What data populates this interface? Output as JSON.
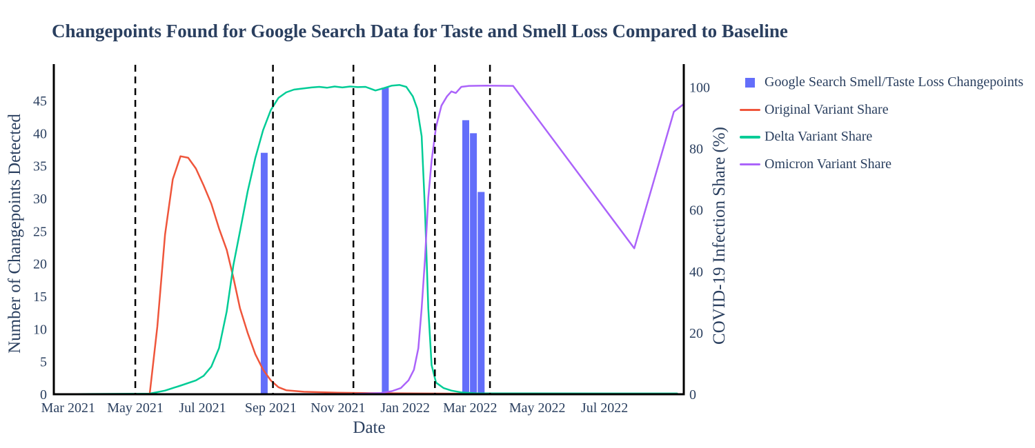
{
  "title": "Changepoints Found for Google Search Data for Taste and Smell Loss Compared to Baseline",
  "axes": {
    "x": {
      "title": "Date",
      "ticks": [
        {
          "label": "Mar 2021",
          "date": "2021-03-01"
        },
        {
          "label": "May 2021",
          "date": "2021-05-01"
        },
        {
          "label": "Jul 2021",
          "date": "2021-07-01"
        },
        {
          "label": "Sep 2021",
          "date": "2021-09-01"
        },
        {
          "label": "Nov 2021",
          "date": "2021-11-01"
        },
        {
          "label": "Jan 2022",
          "date": "2022-01-01"
        },
        {
          "label": "Mar 2022",
          "date": "2022-03-01"
        },
        {
          "label": "May 2022",
          "date": "2022-05-01"
        },
        {
          "label": "Jul 2022",
          "date": "2022-07-01"
        }
      ]
    },
    "y_left": {
      "title": "Number of Changepoints Detected",
      "ticks": [
        0,
        5,
        10,
        15,
        20,
        25,
        30,
        35,
        40,
        45
      ],
      "range": [
        0,
        50.6
      ]
    },
    "y_right": {
      "title": "COVID-19 Infection Share (%)",
      "ticks": [
        0,
        20,
        40,
        60,
        80,
        100
      ],
      "range": [
        0,
        107.5
      ]
    }
  },
  "legend": {
    "items": [
      {
        "label": "Google Search Smell/Taste Loss Changepoints",
        "marker": "square",
        "color": "#636EFA"
      },
      {
        "label": "Original Variant Share",
        "marker": "line",
        "color": "#EF553B"
      },
      {
        "label": "Delta Variant Share",
        "marker": "line",
        "color": "#00CC96"
      },
      {
        "label": "Omicron Variant Share",
        "marker": "line",
        "color": "#AB63FA"
      }
    ]
  },
  "colors": {
    "text": "#2a3f5f",
    "axis": "#000000",
    "dashed": "#000000",
    "background": "#ffffff",
    "bars": "#636EFA",
    "original": "#EF553B",
    "delta": "#00CC96",
    "omicron": "#AB63FA"
  },
  "chart_data": {
    "type": "bar+line",
    "x_domain": [
      "2021-02-16",
      "2022-09-11"
    ],
    "grid": false,
    "legend_position": "right",
    "bars": {
      "name": "Google Search Smell/Taste Loss Changepoints",
      "axis": "left",
      "color": "#636EFA",
      "points": [
        [
          "2021-08-26",
          37
        ],
        [
          "2021-12-14",
          47
        ],
        [
          "2022-02-25",
          42
        ],
        [
          "2022-03-04",
          40
        ],
        [
          "2022-03-11",
          31
        ]
      ]
    },
    "series": [
      {
        "name": "Original Variant Share",
        "axis": "right",
        "color": "#EF553B",
        "points": [
          [
            "2021-02-16",
            0
          ],
          [
            "2021-05-14",
            0
          ],
          [
            "2021-05-21",
            22
          ],
          [
            "2021-05-28",
            52
          ],
          [
            "2021-06-04",
            70
          ],
          [
            "2021-06-11",
            77.5
          ],
          [
            "2021-06-18",
            77
          ],
          [
            "2021-06-25",
            73.5
          ],
          [
            "2021-07-02",
            68
          ],
          [
            "2021-07-09",
            62
          ],
          [
            "2021-07-16",
            54
          ],
          [
            "2021-07-23",
            47
          ],
          [
            "2021-07-29",
            38
          ],
          [
            "2021-08-04",
            28
          ],
          [
            "2021-08-11",
            20
          ],
          [
            "2021-08-18",
            13
          ],
          [
            "2021-08-25",
            8
          ],
          [
            "2021-09-01",
            4.5
          ],
          [
            "2021-09-08",
            2.3
          ],
          [
            "2021-09-15",
            1.3
          ],
          [
            "2021-10-01",
            0.8
          ],
          [
            "2021-11-01",
            0.5
          ],
          [
            "2021-12-01",
            0.35
          ],
          [
            "2022-01-15",
            0.25
          ],
          [
            "2022-03-01",
            0.15
          ],
          [
            "2022-09-05",
            0.1
          ]
        ]
      },
      {
        "name": "Delta Variant Share",
        "axis": "right",
        "color": "#00CC96",
        "points": [
          [
            "2021-02-16",
            0
          ],
          [
            "2021-05-14",
            0.2
          ],
          [
            "2021-05-28",
            1.2
          ],
          [
            "2021-06-11",
            2.8
          ],
          [
            "2021-06-25",
            4.5
          ],
          [
            "2021-07-02",
            6
          ],
          [
            "2021-07-09",
            9
          ],
          [
            "2021-07-16",
            15
          ],
          [
            "2021-07-23",
            27
          ],
          [
            "2021-07-29",
            42
          ],
          [
            "2021-08-04",
            53
          ],
          [
            "2021-08-11",
            66
          ],
          [
            "2021-08-18",
            77
          ],
          [
            "2021-08-25",
            86
          ],
          [
            "2021-09-01",
            92.5
          ],
          [
            "2021-09-08",
            96.5
          ],
          [
            "2021-09-15",
            98.3
          ],
          [
            "2021-09-22",
            99.2
          ],
          [
            "2021-10-01",
            99.6
          ],
          [
            "2021-10-08",
            99.9
          ],
          [
            "2021-10-15",
            100.1
          ],
          [
            "2021-10-22",
            99.8
          ],
          [
            "2021-10-29",
            100.2
          ],
          [
            "2021-11-05",
            99.9
          ],
          [
            "2021-11-12",
            100.2
          ],
          [
            "2021-11-19",
            100.0
          ],
          [
            "2021-11-26",
            100.1
          ],
          [
            "2021-12-05",
            98.9
          ],
          [
            "2021-12-12",
            99.6
          ],
          [
            "2021-12-20",
            100.5
          ],
          [
            "2021-12-27",
            100.7
          ],
          [
            "2022-01-02",
            100.1
          ],
          [
            "2022-01-08",
            97
          ],
          [
            "2022-01-12",
            93
          ],
          [
            "2022-01-16",
            84
          ],
          [
            "2022-01-19",
            60
          ],
          [
            "2022-01-22",
            28
          ],
          [
            "2022-01-25",
            9.5
          ],
          [
            "2022-01-29",
            3.8
          ],
          [
            "2022-02-05",
            2
          ],
          [
            "2022-02-12",
            1.2
          ],
          [
            "2022-02-21",
            0.6
          ],
          [
            "2022-03-07",
            0.3
          ],
          [
            "2022-09-05",
            0.25
          ]
        ]
      },
      {
        "name": "Omicron Variant Share",
        "axis": "right",
        "color": "#AB63FA",
        "points": [
          [
            "2021-02-16",
            0
          ],
          [
            "2021-11-15",
            0.1
          ],
          [
            "2021-12-10",
            0.4
          ],
          [
            "2021-12-20",
            1
          ],
          [
            "2021-12-28",
            2
          ],
          [
            "2022-01-04",
            4.5
          ],
          [
            "2022-01-09",
            8
          ],
          [
            "2022-01-13",
            15
          ],
          [
            "2022-01-16",
            28
          ],
          [
            "2022-01-19",
            44
          ],
          [
            "2022-01-22",
            64
          ],
          [
            "2022-01-25",
            76
          ],
          [
            "2022-01-29",
            87
          ],
          [
            "2022-02-03",
            94
          ],
          [
            "2022-02-08",
            97
          ],
          [
            "2022-02-12",
            98.6
          ],
          [
            "2022-02-16",
            98.1
          ],
          [
            "2022-02-21",
            100.1
          ],
          [
            "2022-02-28",
            100.4
          ],
          [
            "2022-03-15",
            100.5
          ],
          [
            "2022-04-09",
            100.4
          ],
          [
            "2022-07-28",
            47.5
          ],
          [
            "2022-09-02",
            92
          ],
          [
            "2022-09-11",
            94.5
          ]
        ]
      }
    ],
    "event_lines": {
      "style": "dashed",
      "color": "#000000",
      "dates": [
        "2021-05-01",
        "2021-09-03",
        "2021-11-15",
        "2022-01-28",
        "2022-03-19"
      ]
    }
  }
}
